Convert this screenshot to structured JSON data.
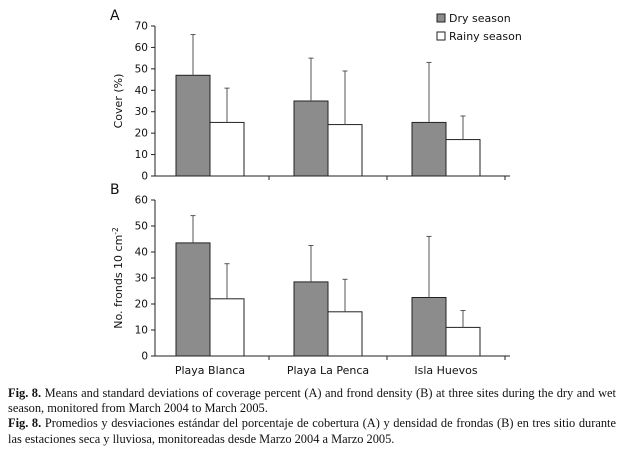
{
  "chart_data": [
    {
      "type": "bar",
      "panel_label": "A",
      "categories": [
        "Playa Blanca",
        "Playa La Penca",
        "Isla Huevos"
      ],
      "series": [
        {
          "name": "Dry season",
          "values": [
            47,
            35,
            25
          ],
          "errors": [
            19,
            20,
            28
          ],
          "color": "#8c8c8c"
        },
        {
          "name": "Rainy season",
          "values": [
            25,
            24,
            17
          ],
          "errors": [
            16,
            25,
            11
          ],
          "color": "#ffffff"
        }
      ],
      "ylabel": "Cover (%)",
      "ylim": [
        0,
        70
      ],
      "yticks": [
        0,
        10,
        20,
        30,
        40,
        50,
        60,
        70
      ],
      "legend": "top-right",
      "grid": false
    },
    {
      "type": "bar",
      "panel_label": "B",
      "categories": [
        "Playa Blanca",
        "Playa La Penca",
        "Isla Huevos"
      ],
      "series": [
        {
          "name": "Dry season",
          "values": [
            43.5,
            28.5,
            22.5
          ],
          "errors": [
            10.5,
            14,
            23.5
          ],
          "color": "#8c8c8c"
        },
        {
          "name": "Rainy season",
          "values": [
            22,
            17,
            11
          ],
          "errors": [
            13.5,
            12.5,
            6.5
          ],
          "color": "#ffffff"
        }
      ],
      "ylabel": "No. fronds 10 cm",
      "ylabel_superscript": "-2",
      "ylim": [
        0,
        60
      ],
      "yticks": [
        0,
        10,
        20,
        30,
        40,
        50,
        60
      ],
      "grid": false
    }
  ],
  "caption": {
    "en_label": "Fig. 8.",
    "en_text": "Means and standard deviations of coverage percent (A) and frond density (B) at three sites during the dry and wet season, monitored from March 2004 to March 2005.",
    "es_label": "Fig. 8.",
    "es_text": "Promedios y desviaciones estándar del porcentaje de cobertura (A) y densidad de frondas (B) en tres sitio durante las estaciones seca y lluviosa, monitoreadas desde Marzo 2004 a Marzo 2005."
  }
}
